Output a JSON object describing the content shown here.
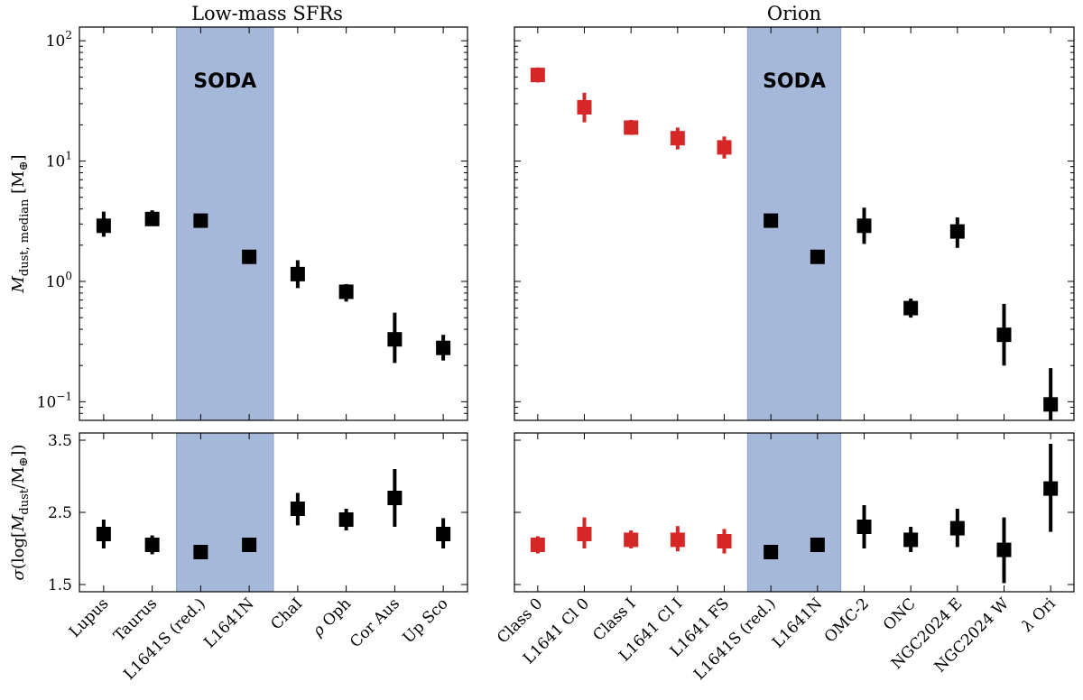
{
  "chart_data": [
    {
      "id": "top-left",
      "type": "scatter",
      "title": "Low-mass SFRs",
      "ylabel": "M_dust, median [M_⊕]",
      "yscale": "log",
      "ylim": [
        0.07,
        130
      ],
      "yticks": [
        0.1,
        1,
        10,
        100
      ],
      "yticklabels": [
        "10^-1",
        "10^0",
        "10^1",
        "10^2"
      ],
      "categories": [
        "Lupus",
        "Taurus",
        "L1641S (red.)",
        "L1641N",
        "ChaI",
        "ρ Oph",
        "Cor Aus",
        "Up Sco"
      ],
      "highlight": {
        "label": "SODA",
        "from_index": 2,
        "to_index": 3,
        "color": "#a6b8da"
      },
      "points": [
        {
          "y": 2.9,
          "lo": 2.35,
          "hi": 3.8,
          "color": "#000000"
        },
        {
          "y": 3.3,
          "lo": 2.9,
          "hi": 3.9,
          "color": "#000000"
        },
        {
          "y": 3.2,
          "lo": 2.95,
          "hi": 3.45,
          "color": "#000000"
        },
        {
          "y": 1.6,
          "lo": 1.48,
          "hi": 1.72,
          "color": "#000000"
        },
        {
          "y": 1.15,
          "lo": 0.88,
          "hi": 1.5,
          "color": "#000000"
        },
        {
          "y": 0.82,
          "lo": 0.68,
          "hi": 0.95,
          "color": "#000000"
        },
        {
          "y": 0.33,
          "lo": 0.21,
          "hi": 0.55,
          "color": "#000000"
        },
        {
          "y": 0.28,
          "lo": 0.22,
          "hi": 0.36,
          "color": "#000000"
        }
      ]
    },
    {
      "id": "top-right",
      "type": "scatter",
      "title": "Orion",
      "yscale": "log",
      "ylim": [
        0.07,
        130
      ],
      "yticks": [
        0.1,
        1,
        10,
        100
      ],
      "categories": [
        "Class 0",
        "L1641 Cl 0",
        "Class I",
        "L1641 Cl I",
        "L1641 FS",
        "L1641S (red.)",
        "L1641N",
        "OMC-2",
        "ONC",
        "NGC2024 E",
        "NGC2024 W",
        "λ Ori"
      ],
      "highlight": {
        "label": "SODA",
        "from_index": 5,
        "to_index": 6,
        "color": "#a6b8da"
      },
      "points": [
        {
          "y": 52,
          "lo": 45,
          "hi": 60,
          "color": "#d62728"
        },
        {
          "y": 28,
          "lo": 21,
          "hi": 37,
          "color": "#d62728"
        },
        {
          "y": 19,
          "lo": 16.5,
          "hi": 22,
          "color": "#d62728"
        },
        {
          "y": 15.5,
          "lo": 12.5,
          "hi": 19,
          "color": "#d62728"
        },
        {
          "y": 13,
          "lo": 10.5,
          "hi": 16,
          "color": "#d62728"
        },
        {
          "y": 3.2,
          "lo": 2.95,
          "hi": 3.45,
          "color": "#000000"
        },
        {
          "y": 1.6,
          "lo": 1.48,
          "hi": 1.72,
          "color": "#000000"
        },
        {
          "y": 2.9,
          "lo": 2.05,
          "hi": 4.1,
          "color": "#000000"
        },
        {
          "y": 0.6,
          "lo": 0.5,
          "hi": 0.72,
          "color": "#000000"
        },
        {
          "y": 2.6,
          "lo": 1.9,
          "hi": 3.4,
          "color": "#000000"
        },
        {
          "y": 0.36,
          "lo": 0.2,
          "hi": 0.65,
          "color": "#000000"
        },
        {
          "y": 0.095,
          "lo": 0.065,
          "hi": 0.19,
          "color": "#000000"
        }
      ]
    },
    {
      "id": "bottom-left",
      "type": "scatter",
      "ylabel": "σ(log[M_dust/M_⊕])",
      "yscale": "linear",
      "ylim": [
        1.4,
        3.6
      ],
      "yticks": [
        1.5,
        2.5,
        3.5
      ],
      "yticklabels": [
        "1.5",
        "2.5",
        "3.5"
      ],
      "categories": [
        "Lupus",
        "Taurus",
        "L1641S (red.)",
        "L1641N",
        "ChaI",
        "ρ Oph",
        "Cor Aus",
        "Up Sco"
      ],
      "highlight": {
        "label": "",
        "from_index": 2,
        "to_index": 3,
        "color": "#a6b8da"
      },
      "points": [
        {
          "y": 2.2,
          "lo": 2.0,
          "hi": 2.4,
          "color": "#000000"
        },
        {
          "y": 2.05,
          "lo": 1.92,
          "hi": 2.18,
          "color": "#000000"
        },
        {
          "y": 1.95,
          "lo": 1.88,
          "hi": 2.02,
          "color": "#000000"
        },
        {
          "y": 2.05,
          "lo": 1.98,
          "hi": 2.12,
          "color": "#000000"
        },
        {
          "y": 2.55,
          "lo": 2.32,
          "hi": 2.77,
          "color": "#000000"
        },
        {
          "y": 2.4,
          "lo": 2.25,
          "hi": 2.55,
          "color": "#000000"
        },
        {
          "y": 2.7,
          "lo": 2.3,
          "hi": 3.1,
          "color": "#000000"
        },
        {
          "y": 2.2,
          "lo": 2.0,
          "hi": 2.42,
          "color": "#000000"
        }
      ]
    },
    {
      "id": "bottom-right",
      "type": "scatter",
      "yscale": "linear",
      "ylim": [
        1.4,
        3.6
      ],
      "yticks": [
        1.5,
        2.5,
        3.5
      ],
      "categories": [
        "Class 0",
        "L1641 Cl 0",
        "Class I",
        "L1641 Cl I",
        "L1641 FS",
        "L1641S (red.)",
        "L1641N",
        "OMC-2",
        "ONC",
        "NGC2024 E",
        "NGC2024 W",
        "λ Ori"
      ],
      "highlight": {
        "label": "",
        "from_index": 5,
        "to_index": 6,
        "color": "#a6b8da"
      },
      "points": [
        {
          "y": 2.05,
          "lo": 1.93,
          "hi": 2.17,
          "color": "#d62728"
        },
        {
          "y": 2.2,
          "lo": 2.0,
          "hi": 2.43,
          "color": "#d62728"
        },
        {
          "y": 2.12,
          "lo": 2.0,
          "hi": 2.25,
          "color": "#d62728"
        },
        {
          "y": 2.12,
          "lo": 1.96,
          "hi": 2.31,
          "color": "#d62728"
        },
        {
          "y": 2.1,
          "lo": 1.93,
          "hi": 2.27,
          "color": "#d62728"
        },
        {
          "y": 1.95,
          "lo": 1.88,
          "hi": 2.02,
          "color": "#000000"
        },
        {
          "y": 2.05,
          "lo": 1.98,
          "hi": 2.12,
          "color": "#000000"
        },
        {
          "y": 2.3,
          "lo": 2.0,
          "hi": 2.6,
          "color": "#000000"
        },
        {
          "y": 2.12,
          "lo": 1.95,
          "hi": 2.3,
          "color": "#000000"
        },
        {
          "y": 2.28,
          "lo": 2.02,
          "hi": 2.55,
          "color": "#000000"
        },
        {
          "y": 1.98,
          "lo": 1.52,
          "hi": 2.43,
          "color": "#000000"
        },
        {
          "y": 2.83,
          "lo": 2.23,
          "hi": 3.45,
          "color": "#000000"
        }
      ]
    }
  ]
}
